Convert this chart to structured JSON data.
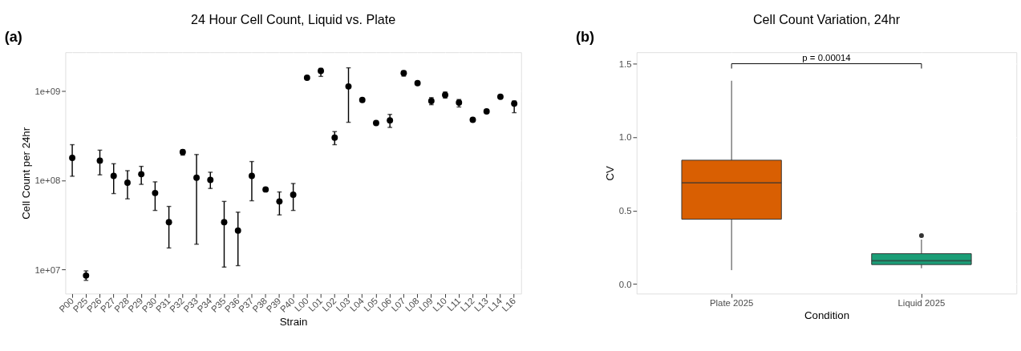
{
  "chart_data": [
    {
      "type": "scatter",
      "title": "24 Hour Cell Count, Liquid vs. Plate",
      "xlabel": "Strain",
      "ylabel": "Cell Count per 24hr",
      "annotations": [
        "(a)"
      ],
      "categories": [
        "P00",
        "P25",
        "P26",
        "P27",
        "P28",
        "P29",
        "P30",
        "P31",
        "P32",
        "P33",
        "P34",
        "P35",
        "P36",
        "P37",
        "P38",
        "P39",
        "P40",
        "L00",
        "L01",
        "L02",
        "L03",
        "L04",
        "L05",
        "L06",
        "L07",
        "L08",
        "L09",
        "L10",
        "L11",
        "L12",
        "L13",
        "L14",
        "L16"
      ],
      "series": [
        {
          "color": "#000000",
          "values": [
            178000000,
            8600000,
            166000000,
            112000000,
            94000000,
            117000000,
            72000000,
            34000000,
            207000000,
            107000000,
            101000000,
            34000000,
            27400000,
            112000000,
            79000000,
            58000000,
            69000000,
            1400000000,
            1670000000,
            300000000,
            1120000000,
            790000000,
            437000000,
            467000000,
            1580000000,
            1220000000,
            770000000,
            900000000,
            740000000,
            475000000,
            590000000,
            860000000,
            720000000
          ],
          "errors": [
            [
              111000000,
              250000000
            ],
            [
              7600000,
              9700000
            ],
            [
              115000000,
              217000000
            ],
            [
              71000000,
              153000000
            ],
            [
              62000000,
              128000000
            ],
            [
              90000000,
              143000000
            ],
            [
              46000000,
              96000000
            ],
            [
              17500000,
              51000000
            ],
            [
              191000000,
              218000000
            ],
            [
              19300000,
              194000000
            ],
            [
              81000000,
              123000000
            ],
            [
              10700000,
              58000000
            ],
            [
              11100000,
              44000000
            ],
            [
              59000000,
              162000000
            ],
            null,
            [
              41000000,
              74000000
            ],
            [
              46000000,
              92000000
            ],
            null,
            [
              1450000000,
              1780000000
            ],
            [
              250000000,
              350000000
            ],
            [
              445000000,
              1810000000
            ],
            null,
            null,
            [
              390000000,
              545000000
            ],
            [
              1460000000,
              1670000000
            ],
            null,
            [
              700000000,
              840000000
            ],
            [
              830000000,
              970000000
            ],
            [
              660000000,
              800000000
            ],
            null,
            null,
            null,
            [
              570000000,
              770000000
            ]
          ]
        }
      ],
      "ylim": [
        5400000,
        2700000000
      ],
      "yticks": [
        {
          "value": 10000000,
          "label": "1e+07"
        },
        {
          "value": 100000000,
          "label": "1e+08"
        },
        {
          "value": 1000000000,
          "label": "1e+09"
        }
      ],
      "log": true,
      "grid": true,
      "marker": "circle"
    },
    {
      "type": "box",
      "title": "Cell Count Variation, 24hr",
      "xlabel": "Condition",
      "ylabel": "CV",
      "annotations": [
        "(b)",
        "p = 0.00014"
      ],
      "categories": [
        "Plate 2025",
        "Liquid 2025"
      ],
      "boxes": [
        {
          "low": 0.094,
          "q1": 0.441,
          "median": 0.689,
          "q3": 0.843,
          "high": 1.384
        },
        {
          "low": 0.107,
          "q1": 0.132,
          "median": 0.158,
          "q3": 0.206,
          "high": 0.302,
          "outliers": [
            0.329
          ]
        }
      ],
      "colors": [
        "#d95f02",
        "#1b9e77"
      ],
      "ylim": [
        -0.066,
        1.578
      ],
      "yticks": [
        {
          "value": 0,
          "label": "0.0"
        },
        {
          "value": 0.5,
          "label": "0.5"
        },
        {
          "value": 1,
          "label": "1.0"
        },
        {
          "value": 1.5,
          "label": "1.5"
        }
      ],
      "grid": true
    }
  ]
}
